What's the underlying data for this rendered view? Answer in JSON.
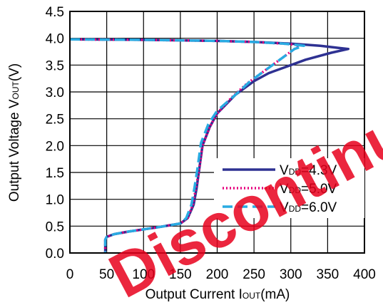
{
  "chart_data": {
    "type": "line",
    "xlabel": {
      "main": "Output Current I",
      "sub": "OUT",
      "unit": "(mA)"
    },
    "ylabel": {
      "main": "Output Voltage V",
      "sub": "OUT",
      "unit": "(V)"
    },
    "xlim": [
      0,
      400
    ],
    "ylim": [
      0,
      4.5
    ],
    "xticks": [
      "0",
      "50",
      "100",
      "150",
      "200",
      "250",
      "300",
      "350",
      "400"
    ],
    "yticks": [
      "0.0",
      "0.5",
      "1.0",
      "1.5",
      "2.0",
      "2.5",
      "3.0",
      "3.5",
      "4.0",
      "4.5"
    ],
    "grid": true,
    "legend_position": "center-right",
    "series": [
      {
        "legend": {
          "pre": "V",
          "sub": "DD",
          "post": "=4.3V"
        },
        "color": "#2e3192",
        "dash": "solid",
        "x": [
          0,
          100,
          200,
          250,
          300,
          340,
          365,
          378,
          355,
          320,
          290,
          270,
          250,
          225,
          200,
          190,
          180,
          175,
          172,
          168,
          160,
          150,
          120,
          80,
          60,
          50,
          48,
          48,
          48
        ],
        "y": [
          3.98,
          3.97,
          3.95,
          3.93,
          3.9,
          3.86,
          3.82,
          3.8,
          3.73,
          3.6,
          3.45,
          3.35,
          3.2,
          2.95,
          2.6,
          2.35,
          2.0,
          1.5,
          1.2,
          0.9,
          0.65,
          0.55,
          0.48,
          0.4,
          0.35,
          0.3,
          0.25,
          0.1,
          0.0
        ]
      },
      {
        "legend": {
          "pre": "V",
          "sub": "DD",
          "post": "=5.0V"
        },
        "color": "#e6007e",
        "dash": "dotted",
        "x": [
          0,
          100,
          200,
          250,
          290,
          305,
          312,
          300,
          280,
          260,
          240,
          220,
          200,
          190,
          180,
          175,
          171,
          167,
          160,
          150,
          120,
          80,
          60,
          50,
          48,
          48,
          48
        ],
        "y": [
          3.98,
          3.97,
          3.95,
          3.93,
          3.9,
          3.88,
          3.87,
          3.75,
          3.55,
          3.35,
          3.15,
          2.9,
          2.6,
          2.35,
          2.0,
          1.5,
          1.2,
          0.9,
          0.65,
          0.55,
          0.48,
          0.4,
          0.35,
          0.3,
          0.25,
          0.1,
          0.0
        ]
      },
      {
        "legend": {
          "pre": "V",
          "sub": "DD",
          "post": "=6.0V"
        },
        "color": "#29abe2",
        "dash": "dashed",
        "x": [
          0,
          100,
          200,
          250,
          290,
          305,
          318,
          305,
          285,
          265,
          245,
          225,
          200,
          188,
          178,
          173,
          169,
          165,
          158,
          150,
          120,
          80,
          60,
          50,
          48,
          48,
          48
        ],
        "y": [
          3.98,
          3.97,
          3.95,
          3.93,
          3.9,
          3.88,
          3.86,
          3.8,
          3.6,
          3.4,
          3.2,
          2.95,
          2.65,
          2.4,
          2.05,
          1.55,
          1.2,
          0.9,
          0.65,
          0.55,
          0.48,
          0.4,
          0.35,
          0.3,
          0.25,
          0.1,
          0.0
        ]
      }
    ]
  },
  "watermark": {
    "text": "Discontinued",
    "color": "#e8001c"
  }
}
